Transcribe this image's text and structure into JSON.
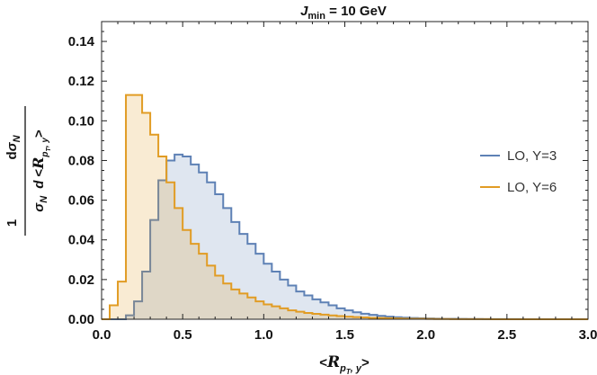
{
  "chart_data": {
    "type": "histogram",
    "title": {
      "main": "J",
      "sub": "min",
      "rest": " = 10 GeV"
    },
    "xlabel": {
      "lt": "<",
      "script": "R",
      "sub": "p",
      "subsub": "T",
      "tail": ", y",
      "gt": ">"
    },
    "ylabel": {
      "one": "1",
      "num_d": "d",
      "num_sigma": "σ",
      "num_sub": "N",
      "den_sigma": "σ",
      "den_sub": "N",
      "den_d": "d",
      "den_lt": "<",
      "den_script": "R",
      "den_sub2": "p",
      "den_subsub": "T",
      "den_tail": ", y",
      "den_gt": ">"
    },
    "xlim": [
      0.0,
      3.0
    ],
    "ylim": [
      0.0,
      0.15
    ],
    "xticks": [
      "0.0",
      "0.5",
      "1.0",
      "1.5",
      "2.0",
      "2.5",
      "3.0"
    ],
    "xtick_values": [
      0.0,
      0.5,
      1.0,
      1.5,
      2.0,
      2.5,
      3.0
    ],
    "yticks": [
      "0.00",
      "0.02",
      "0.04",
      "0.06",
      "0.08",
      "0.10",
      "0.12",
      "0.14"
    ],
    "ytick_values": [
      0.0,
      0.02,
      0.04,
      0.06,
      0.07999999999999999,
      0.1,
      0.12,
      0.14
    ],
    "bin_edges": [
      0.0,
      0.05,
      0.1,
      0.15,
      0.2,
      0.25,
      0.3,
      0.35,
      0.4,
      0.45,
      0.5,
      0.55,
      0.6,
      0.65,
      0.7,
      0.75,
      0.8,
      0.85,
      0.9,
      0.95,
      1.0,
      1.05,
      1.1,
      1.15,
      1.2,
      1.25,
      1.3,
      1.35,
      1.4,
      1.45,
      1.5,
      1.55,
      1.6,
      1.65,
      1.7,
      1.75,
      1.8,
      1.85,
      1.9,
      1.95,
      2.0,
      2.05,
      2.1,
      2.15,
      2.2,
      2.25,
      2.3,
      2.35,
      2.4,
      2.45,
      2.5,
      2.55,
      2.6,
      2.65,
      2.7,
      2.75,
      2.8,
      2.85,
      2.9,
      2.95,
      3.0
    ],
    "series": [
      {
        "name": "LO, Y=3",
        "color": "#5e81b5",
        "fill": "rgba(94,129,181,0.2)",
        "values": [
          0.0,
          0.0,
          0.0,
          0.002,
          0.009,
          0.024,
          0.05,
          0.07,
          0.08,
          0.083,
          0.082,
          0.078,
          0.074,
          0.069,
          0.063,
          0.056,
          0.049,
          0.043,
          0.038,
          0.033,
          0.028,
          0.024,
          0.02,
          0.017,
          0.014,
          0.012,
          0.01,
          0.0085,
          0.007,
          0.0055,
          0.0045,
          0.0035,
          0.0028,
          0.0022,
          0.0017,
          0.0013,
          0.001,
          0.0008,
          0.0006,
          0.0005,
          0.0004,
          0.0003,
          0.00025,
          0.0002,
          0.00015,
          0.00012,
          0.0001,
          8e-05,
          6e-05,
          5e-05,
          4e-05,
          3e-05,
          2e-05,
          1e-05,
          1e-05,
          1e-05,
          0.0,
          0.0,
          0.0,
          0.0
        ]
      },
      {
        "name": "LO, Y=6",
        "color": "#e19c24",
        "fill": "rgba(225,156,36,0.2)",
        "values": [
          0.0,
          0.007,
          0.019,
          0.113,
          0.113,
          0.104,
          0.093,
          0.082,
          0.069,
          0.056,
          0.045,
          0.038,
          0.033,
          0.027,
          0.022,
          0.018,
          0.015,
          0.013,
          0.011,
          0.009,
          0.0075,
          0.0065,
          0.0055,
          0.0045,
          0.0038,
          0.0032,
          0.0027,
          0.0023,
          0.0019,
          0.0016,
          0.0013,
          0.0011,
          0.0009,
          0.0007,
          0.0006,
          0.0005,
          0.0004,
          0.0003,
          0.00025,
          0.0002,
          0.00015,
          0.00012,
          0.0001,
          8e-05,
          6e-05,
          5e-05,
          4e-05,
          3e-05,
          2e-05,
          1e-05,
          1e-05,
          0.0,
          0.0,
          0.0,
          0.0,
          0.0,
          0.0,
          0.0,
          0.0,
          0.0
        ]
      }
    ],
    "legend_position": "right"
  }
}
